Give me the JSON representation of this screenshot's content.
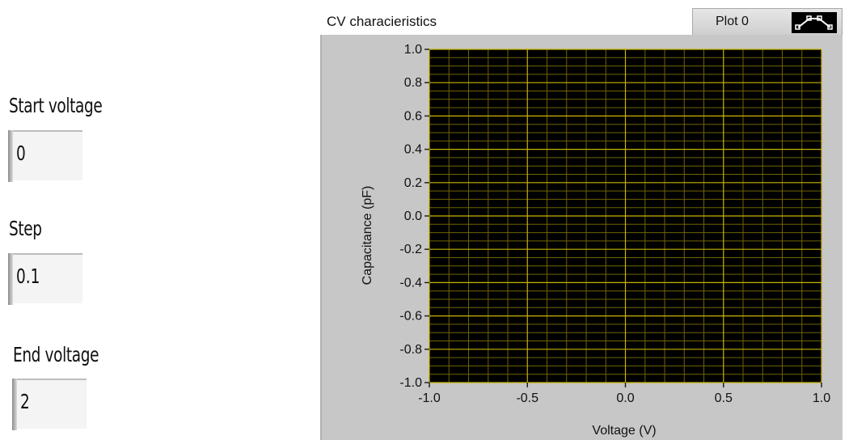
{
  "controls": {
    "start_voltage": {
      "label": "Start voltage",
      "value": "0"
    },
    "step": {
      "label": "Step",
      "value": "0.1"
    },
    "end_voltage": {
      "label": "End voltage",
      "value": "2"
    }
  },
  "graph": {
    "title": "CV characieristics",
    "legend_label": "Plot 0",
    "legend_icon": "plot-style-icon",
    "plot_bg_color": "#000000",
    "grid_major_color": "#c8b400",
    "grid_minor_color": "#6e6400"
  },
  "chart_data": {
    "type": "line",
    "title": "CV characieristics",
    "xlabel": "Voltage (V)",
    "ylabel": "Capacitance (pF)",
    "xlim": [
      -1.0,
      1.0
    ],
    "ylim": [
      -1.0,
      1.0
    ],
    "x_ticks": [
      "-1.0",
      "-0.5",
      "0.0",
      "0.5",
      "1.0"
    ],
    "y_ticks": [
      "1.0",
      "0.8",
      "0.6",
      "0.4",
      "0.2",
      "0.0",
      "-0.2",
      "-0.4",
      "-0.6",
      "-0.8",
      "-1.0"
    ],
    "grid": true,
    "series": [
      {
        "name": "Plot 0",
        "x": [],
        "y": []
      }
    ]
  }
}
